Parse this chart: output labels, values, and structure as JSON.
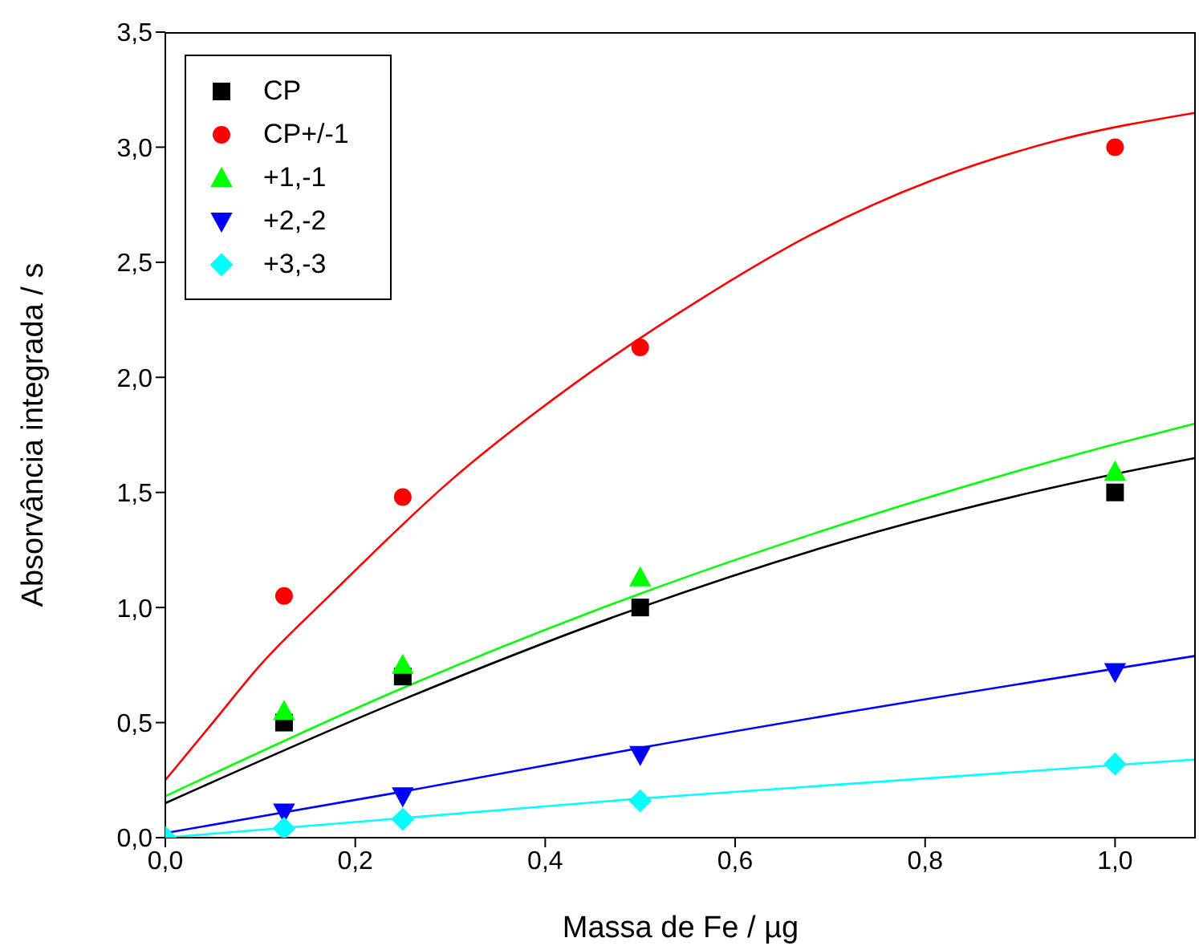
{
  "chart_data": {
    "type": "scatter",
    "xlabel": "Massa de Fe / µg",
    "ylabel": "Absorvância integrada / s",
    "xlim": [
      0,
      1.085
    ],
    "ylim": [
      0,
      3.5
    ],
    "xticks": [
      {
        "value": 0,
        "label": "0,0"
      },
      {
        "value": 0.2,
        "label": "0,2"
      },
      {
        "value": 0.4,
        "label": "0,4"
      },
      {
        "value": 0.6,
        "label": "0,6"
      },
      {
        "value": 0.8,
        "label": "0,8"
      },
      {
        "value": 1,
        "label": "1,0"
      }
    ],
    "yticks": [
      {
        "value": 0,
        "label": "0,0"
      },
      {
        "value": 0.5,
        "label": "0,5"
      },
      {
        "value": 1,
        "label": "1,0"
      },
      {
        "value": 1.5,
        "label": "1,5"
      },
      {
        "value": 2,
        "label": "2,0"
      },
      {
        "value": 2.5,
        "label": "2,5"
      },
      {
        "value": 3,
        "label": "3,0"
      },
      {
        "value": 3.5,
        "label": "3,5"
      }
    ],
    "grid": false,
    "legend": "top left",
    "series": [
      {
        "name": "CP",
        "color": "#000000",
        "marker": "square",
        "x": [
          0.125,
          0.25,
          0.5,
          1.0
        ],
        "values": [
          0.5,
          0.7,
          1.0,
          1.5
        ]
      },
      {
        "name": "CP+/-1",
        "color": "#ff0000",
        "marker": "circle",
        "x": [
          0.125,
          0.25,
          0.5,
          1.0
        ],
        "values": [
          1.05,
          1.48,
          2.13,
          3.0
        ]
      },
      {
        "name": "+1,-1",
        "color": "#00ff00",
        "marker": "triangle",
        "x": [
          0.125,
          0.25,
          0.5,
          1.0
        ],
        "values": [
          0.55,
          0.75,
          1.13,
          1.59
        ]
      },
      {
        "name": "+2,-2",
        "color": "#0000ff",
        "marker": "triangle-down",
        "x": [
          0.125,
          0.25,
          0.5,
          1.0
        ],
        "values": [
          0.11,
          0.18,
          0.36,
          0.72
        ]
      },
      {
        "name": "+3,-3",
        "color": "#00ffff",
        "marker": "diamond",
        "x": [
          0,
          0.125,
          0.25,
          0.5,
          1.0
        ],
        "values": [
          0,
          0.04,
          0.08,
          0.16,
          0.32
        ]
      },
      {
        "type": "line",
        "color": "#000000",
        "x": [
          0,
          0.25,
          0.5,
          0.75,
          1.0,
          1.085
        ],
        "values": [
          0.15,
          0.6,
          1.0,
          1.33,
          1.58,
          1.65
        ]
      },
      {
        "type": "line",
        "color": "#ff0000",
        "x": [
          0,
          0.05,
          0.1,
          0.175,
          0.3,
          0.43,
          0.56,
          0.68,
          0.81,
          0.94,
          1.085
        ],
        "values": [
          0.25,
          0.5,
          0.75,
          1.06,
          1.55,
          1.97,
          2.33,
          2.62,
          2.86,
          3.03,
          3.15
        ]
      },
      {
        "type": "line",
        "color": "#00ff00",
        "x": [
          0,
          0.25,
          0.5,
          0.75,
          1.0,
          1.085
        ],
        "values": [
          0.18,
          0.65,
          1.06,
          1.41,
          1.71,
          1.8
        ]
      },
      {
        "type": "line",
        "color": "#0000ff",
        "x": [
          0,
          0.25,
          0.5,
          1.085
        ],
        "values": [
          0.02,
          0.2,
          0.39,
          0.79
        ]
      },
      {
        "type": "line",
        "color": "#00ffff",
        "x": [
          0,
          0.5,
          1.085
        ],
        "values": [
          0,
          0.17,
          0.34
        ]
      }
    ]
  }
}
